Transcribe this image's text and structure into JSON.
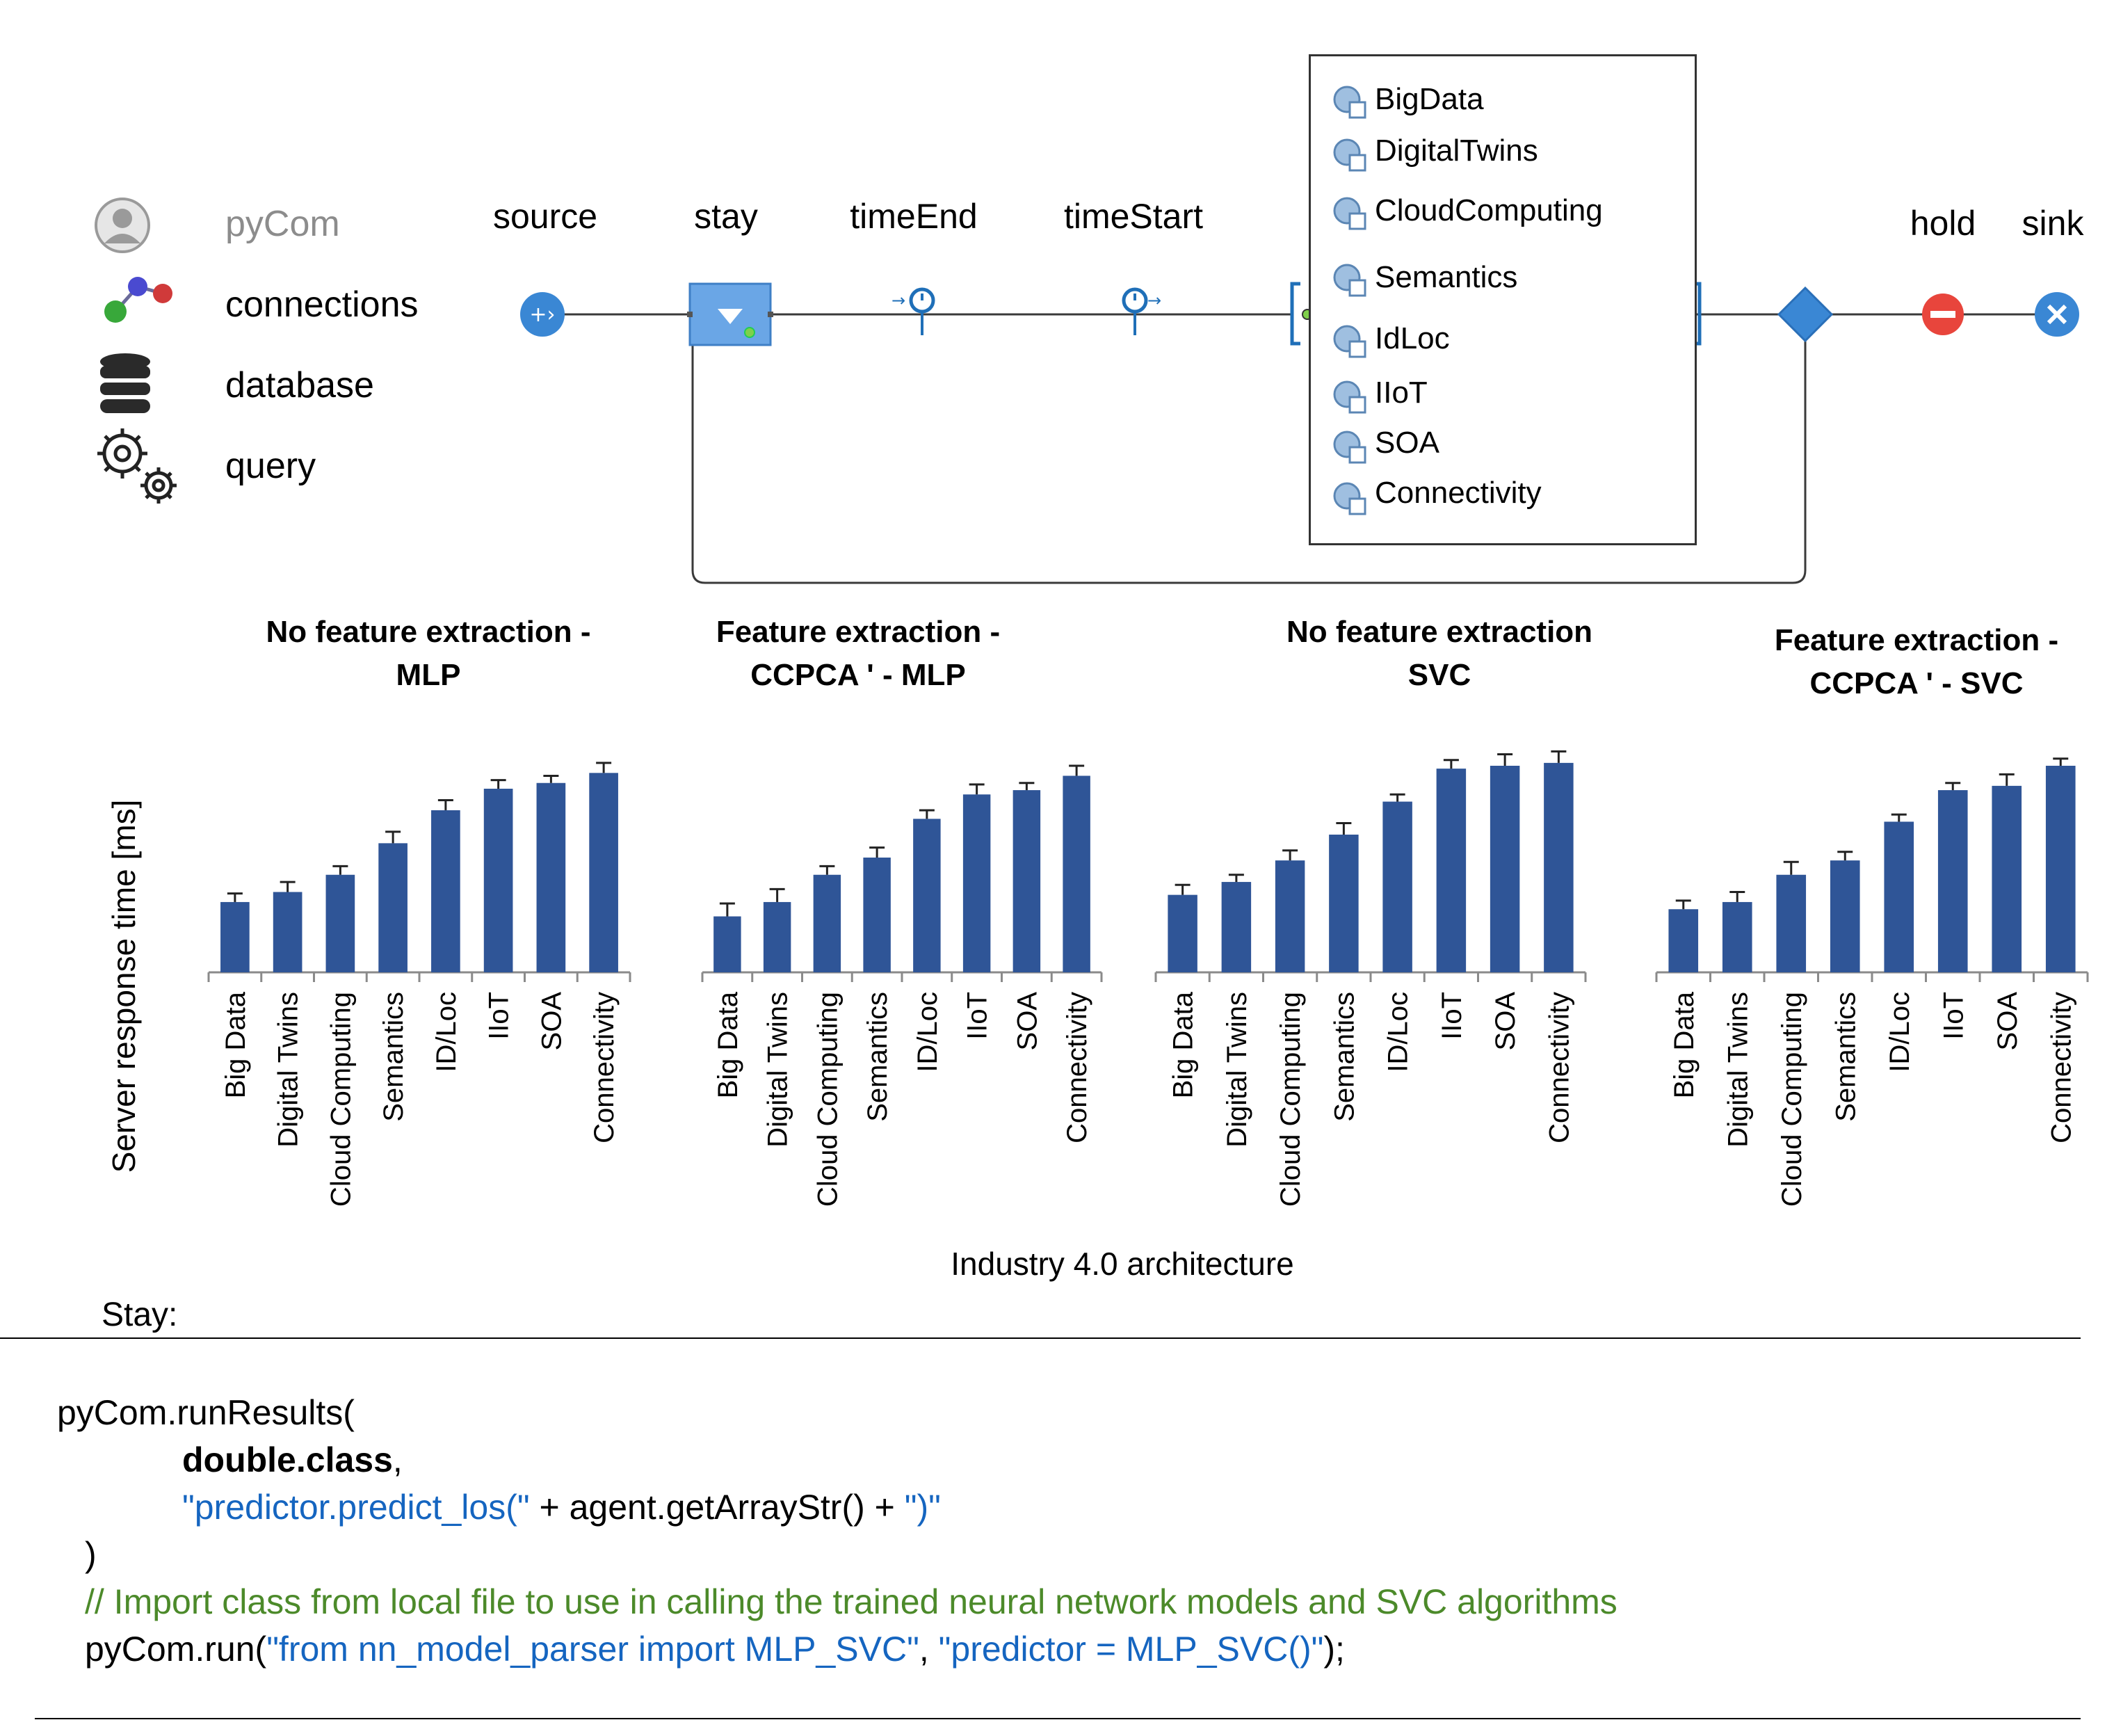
{
  "legend": {
    "items": [
      {
        "icon": "user-icon",
        "label": "pyCom"
      },
      {
        "icon": "connections-icon",
        "label": "connections"
      },
      {
        "icon": "database-icon",
        "label": "database"
      },
      {
        "icon": "gears-icon",
        "label": "query"
      }
    ]
  },
  "flow": {
    "nodes": [
      {
        "name": "source",
        "label": "source"
      },
      {
        "name": "stay",
        "label": "stay"
      },
      {
        "name": "timeEnd",
        "label": "timeEnd"
      },
      {
        "name": "timeStart",
        "label": "timeStart"
      },
      {
        "name": "hold",
        "label": "hold"
      },
      {
        "name": "sink",
        "label": "sink"
      }
    ],
    "databases": [
      "BigData",
      "DigitalTwins",
      "CloudComputing",
      "Semantics",
      "IdLoc",
      "IIoT",
      "SOA",
      "Connectivity"
    ]
  },
  "colors": {
    "bar": "#2f5597",
    "node_blue": "#3a87d4",
    "hold_red": "#e8453c",
    "code_blue": "#1565c0",
    "comment_green": "#4c8a2a"
  },
  "chart_data": [
    {
      "type": "bar",
      "title": "No feature extraction - MLP",
      "title_lines": [
        "No feature extraction -",
        "MLP"
      ],
      "categories": [
        "Big Data",
        "Digital Twins",
        "Cloud Computing",
        "Semantics",
        "ID/Loc",
        "IIoT",
        "SOA",
        "Connectivity"
      ],
      "values": [
        49,
        56,
        68,
        90,
        113,
        128,
        132,
        139
      ],
      "errors": [
        6,
        7,
        6,
        8,
        7,
        6,
        5,
        7
      ],
      "ylabel": "Server response time [ms]",
      "ylim": [
        0,
        160
      ]
    },
    {
      "type": "bar",
      "title": "Feature extraction - CCPCA ' - MLP",
      "title_lines": [
        "Feature extraction -",
        "CCPCA ' - MLP"
      ],
      "categories": [
        "Big Data",
        "Digital Twins",
        "Cloud Computing",
        "Semantics",
        "ID/Loc",
        "IIoT",
        "SOA",
        "Connectivity"
      ],
      "values": [
        39,
        49,
        68,
        80,
        107,
        124,
        127,
        137
      ],
      "errors": [
        9,
        9,
        6,
        7,
        6,
        7,
        5,
        7
      ],
      "ylabel": "Server response time [ms]",
      "ylim": [
        0,
        160
      ]
    },
    {
      "type": "bar",
      "title": "No feature extraction SVC",
      "title_lines": [
        "No feature extraction",
        "SVC"
      ],
      "categories": [
        "Big Data",
        "Digital Twins",
        "Cloud Computing",
        "Semantics",
        "ID/Loc",
        "IIoT",
        "SOA",
        "Connectivity"
      ],
      "values": [
        54,
        63,
        78,
        96,
        119,
        142,
        144,
        146
      ],
      "errors": [
        7,
        5,
        7,
        8,
        5,
        6,
        8,
        8
      ],
      "ylabel": "Server response time [ms]",
      "ylim": [
        0,
        160
      ]
    },
    {
      "type": "bar",
      "title": "Feature extraction - CCPCA ' - SVC",
      "title_lines": [
        "Feature extraction -",
        "CCPCA ' - SVC"
      ],
      "categories": [
        "Big Data",
        "Digital Twins",
        "Cloud Computing",
        "Semantics",
        "ID/Loc",
        "IIoT",
        "SOA",
        "Connectivity"
      ],
      "values": [
        44,
        49,
        68,
        78,
        105,
        127,
        130,
        144
      ],
      "errors": [
        6,
        7,
        9,
        6,
        5,
        5,
        8,
        5
      ],
      "ylabel": "Server response time [ms]",
      "ylim": [
        0,
        160
      ]
    }
  ],
  "axes": {
    "ylabel": "Server response time [ms]",
    "xlabel": "Industry 4.0 architecture"
  },
  "code": {
    "stay_label": "Stay:",
    "line1": "pyCom.runResults(",
    "line2_bold": "double.class",
    "line2_rest": ",",
    "line3_str1": "\"predictor.predict_los(\"",
    "line3_mid": " + agent.getArrayStr() + ",
    "line3_str2": "\")\"",
    "line4": ")",
    "comment": "// Import class from local file to use in calling the trained neural network models and SVC algorithms",
    "line6_a": "pyCom.run(",
    "line6_str1": "\"from nn_model_parser import MLP_SVC\"",
    "line6_b": ", ",
    "line6_str2": "\"predictor = MLP_SVC()\"",
    "line6_c": ");"
  }
}
